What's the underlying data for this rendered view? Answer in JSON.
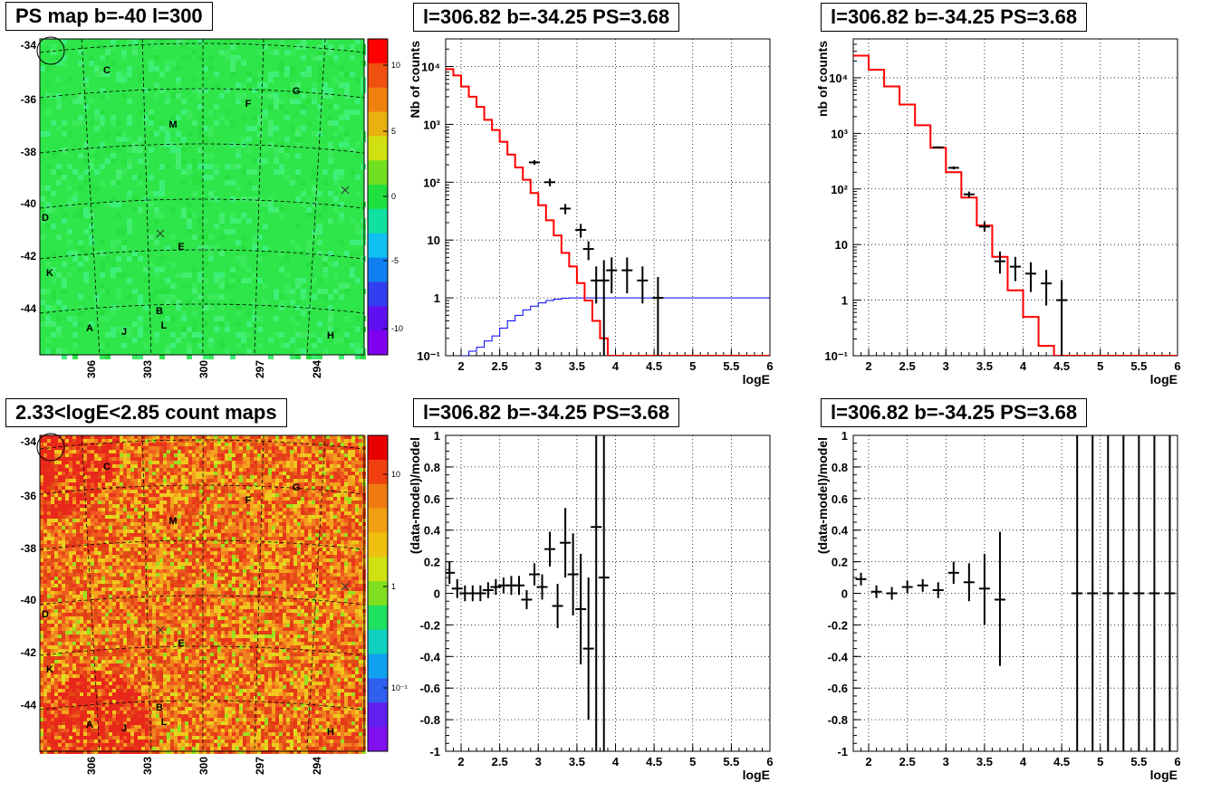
{
  "panels": {
    "ps_map": {
      "title": "PS map b=-40 l=300",
      "y_ticks": [
        "-34",
        "-36",
        "-38",
        "-40",
        "-42",
        "-44"
      ],
      "x_ticks": [
        "306",
        "303",
        "300",
        "297",
        "294"
      ],
      "colorbar_ticks": [
        "10",
        "5",
        "0",
        "-5",
        "-10"
      ],
      "colors": {
        "background": "#2ee64a",
        "patch": "#3cf07a"
      }
    },
    "count_map": {
      "title": "2.33<logE<2.85 count maps",
      "y_ticks": [
        "-34",
        "-36",
        "-38",
        "-40",
        "-42",
        "-44"
      ],
      "x_ticks": [
        "306",
        "303",
        "300",
        "297",
        "294"
      ],
      "colorbar_ticks": [
        "10",
        "1",
        "10⁻¹"
      ],
      "colors": {
        "background": "#f0701e"
      }
    },
    "sources": [
      {
        "label": "C"
      },
      {
        "label": "G"
      },
      {
        "label": "F"
      },
      {
        "label": "M"
      },
      {
        "label": "D"
      },
      {
        "label": "E"
      },
      {
        "label": "K"
      },
      {
        "label": "B"
      },
      {
        "label": "A"
      },
      {
        "label": "J"
      },
      {
        "label": "L"
      },
      {
        "label": "H"
      }
    ],
    "spectrum_left": {
      "title": "l=306.82 b=-34.25 PS=3.68"
    },
    "spectrum_right": {
      "title": "l=306.82 b=-34.25 PS=3.68"
    },
    "residual_left": {
      "title": "l=306.82 b=-34.25 PS=3.68"
    },
    "residual_right": {
      "title": "l=306.82 b=-34.25 PS=3.68"
    }
  },
  "chart_data": [
    {
      "type": "line",
      "title": "l=306.82 b=-34.25 PS=3.68",
      "xlabel": "logE",
      "ylabel": "Nb of counts",
      "xlim": [
        1.8,
        6
      ],
      "ylim": [
        0.1,
        30000
      ],
      "log_y": true,
      "grid": true,
      "x_ticks": [
        "2",
        "2.5",
        "3",
        "3.5",
        "4",
        "4.5",
        "5",
        "5.5",
        "6"
      ],
      "y_ticks": [
        "10⁻¹",
        "1",
        "10",
        "10²",
        "10³",
        "10⁴"
      ],
      "colors": {
        "model": "#ff0000",
        "data": "#000000",
        "exposure": "#0000ff"
      },
      "model_edges": [
        1.8,
        1.9,
        2.0,
        2.1,
        2.2,
        2.3,
        2.4,
        2.5,
        2.6,
        2.7,
        2.8,
        2.9,
        3.0,
        3.1,
        3.2,
        3.3,
        3.4,
        3.5,
        3.6,
        3.7,
        3.8,
        3.9,
        4.0,
        6.0
      ],
      "model_values": [
        9000,
        7000,
        4500,
        3000,
        2000,
        1200,
        800,
        500,
        300,
        180,
        110,
        65,
        40,
        22,
        12,
        6,
        3.5,
        1.8,
        0.9,
        0.4,
        0.2,
        0.1,
        0.1
      ],
      "data_points": [
        {
          "x": 2.95,
          "y": 220,
          "ylo": 200,
          "yhi": 240
        },
        {
          "x": 3.15,
          "y": 100,
          "ylo": 85,
          "yhi": 115
        },
        {
          "x": 3.35,
          "y": 35,
          "ylo": 28,
          "yhi": 42
        },
        {
          "x": 3.55,
          "y": 15,
          "ylo": 11,
          "yhi": 19
        },
        {
          "x": 3.65,
          "y": 7,
          "ylo": 4.5,
          "yhi": 9.5
        },
        {
          "x": 3.75,
          "y": 2,
          "ylo": 0.8,
          "yhi": 3.5
        },
        {
          "x": 3.85,
          "y": 2,
          "ylo": 0.1,
          "yhi": 4.5
        },
        {
          "x": 3.95,
          "y": 3,
          "ylo": 1.2,
          "yhi": 5
        },
        {
          "x": 4.15,
          "y": 3,
          "ylo": 1.2,
          "yhi": 5
        },
        {
          "x": 4.35,
          "y": 2,
          "ylo": 0.8,
          "yhi": 3.5
        },
        {
          "x": 4.55,
          "y": 1,
          "ylo": 0.1,
          "yhi": 2.3
        }
      ],
      "exposure_x": [
        2.0,
        2.1,
        2.2,
        2.3,
        2.4,
        2.5,
        2.6,
        2.7,
        2.8,
        2.9,
        3.0,
        3.1,
        3.2,
        3.3,
        3.4,
        3.6,
        6.0
      ],
      "exposure_y": [
        0.1,
        0.12,
        0.14,
        0.18,
        0.22,
        0.3,
        0.4,
        0.5,
        0.62,
        0.72,
        0.82,
        0.9,
        0.95,
        0.98,
        1.0,
        1.0,
        1.0
      ]
    },
    {
      "type": "line",
      "title": "l=306.82 b=-34.25 PS=3.68",
      "xlabel": "logE",
      "ylabel": "nb of counts",
      "xlim": [
        1.8,
        6
      ],
      "ylim": [
        0.1,
        50000
      ],
      "log_y": true,
      "grid": true,
      "x_ticks": [
        "2",
        "2.5",
        "3",
        "3.5",
        "4",
        "4.5",
        "5",
        "5.5",
        "6"
      ],
      "y_ticks": [
        "10⁻¹",
        "1",
        "10",
        "10²",
        "10³",
        "10⁴"
      ],
      "colors": {
        "model": "#ff0000",
        "data": "#000000"
      },
      "model_edges": [
        1.8,
        2.0,
        2.2,
        2.4,
        2.6,
        2.8,
        3.0,
        3.2,
        3.4,
        3.6,
        3.8,
        4.0,
        4.2,
        4.4,
        6.0
      ],
      "model_values": [
        25000,
        14000,
        7000,
        3300,
        1400,
        550,
        200,
        70,
        22,
        6,
        1.5,
        0.5,
        0.15,
        0.1
      ],
      "data_points": [
        {
          "x": 2.9,
          "y": 560,
          "ylo": 540,
          "yhi": 580
        },
        {
          "x": 3.1,
          "y": 240,
          "ylo": 225,
          "yhi": 255
        },
        {
          "x": 3.3,
          "y": 80,
          "ylo": 70,
          "yhi": 90
        },
        {
          "x": 3.5,
          "y": 21,
          "ylo": 17,
          "yhi": 26
        },
        {
          "x": 3.7,
          "y": 5,
          "ylo": 3,
          "yhi": 7.5
        },
        {
          "x": 3.9,
          "y": 4,
          "ylo": 2.2,
          "yhi": 6
        },
        {
          "x": 4.1,
          "y": 3,
          "ylo": 1.4,
          "yhi": 4.8
        },
        {
          "x": 4.3,
          "y": 2,
          "ylo": 0.8,
          "yhi": 3.5
        },
        {
          "x": 4.5,
          "y": 1,
          "ylo": 0.1,
          "yhi": 2.3
        }
      ]
    },
    {
      "type": "scatter",
      "title": "l=306.82 b=-34.25 PS=3.68",
      "xlabel": "logE",
      "ylabel": "(data-model)/model",
      "xlim": [
        1.8,
        6
      ],
      "ylim": [
        -1,
        1
      ],
      "grid": true,
      "x_ticks": [
        "2",
        "2.5",
        "3",
        "3.5",
        "4",
        "4.5",
        "5",
        "5.5",
        "6"
      ],
      "y_ticks": [
        "-1",
        "-0.8",
        "-0.6",
        "-0.4",
        "-0.2",
        "0",
        "0.2",
        "0.4",
        "0.6",
        "0.8",
        "1"
      ],
      "points": [
        {
          "x": 1.85,
          "y": 0.13,
          "ylo": 0.06,
          "yhi": 0.2
        },
        {
          "x": 1.95,
          "y": 0.03,
          "ylo": -0.03,
          "yhi": 0.09
        },
        {
          "x": 2.05,
          "y": 0.0,
          "ylo": -0.05,
          "yhi": 0.05
        },
        {
          "x": 2.15,
          "y": 0.0,
          "ylo": -0.05,
          "yhi": 0.05
        },
        {
          "x": 2.25,
          "y": 0.0,
          "ylo": -0.05,
          "yhi": 0.05
        },
        {
          "x": 2.35,
          "y": 0.02,
          "ylo": -0.03,
          "yhi": 0.07
        },
        {
          "x": 2.45,
          "y": 0.04,
          "ylo": -0.01,
          "yhi": 0.09
        },
        {
          "x": 2.55,
          "y": 0.05,
          "ylo": 0.0,
          "yhi": 0.1
        },
        {
          "x": 2.65,
          "y": 0.05,
          "ylo": -0.01,
          "yhi": 0.11
        },
        {
          "x": 2.75,
          "y": 0.05,
          "ylo": -0.01,
          "yhi": 0.11
        },
        {
          "x": 2.85,
          "y": -0.04,
          "ylo": -0.1,
          "yhi": 0.02
        },
        {
          "x": 2.95,
          "y": 0.12,
          "ylo": 0.05,
          "yhi": 0.19
        },
        {
          "x": 3.05,
          "y": 0.04,
          "ylo": -0.04,
          "yhi": 0.12
        },
        {
          "x": 3.15,
          "y": 0.28,
          "ylo": 0.17,
          "yhi": 0.39
        },
        {
          "x": 3.25,
          "y": -0.08,
          "ylo": -0.22,
          "yhi": 0.06
        },
        {
          "x": 3.35,
          "y": 0.32,
          "ylo": 0.1,
          "yhi": 0.54
        },
        {
          "x": 3.45,
          "y": 0.12,
          "ylo": -0.14,
          "yhi": 0.38
        },
        {
          "x": 3.55,
          "y": -0.1,
          "ylo": -0.45,
          "yhi": 0.25
        },
        {
          "x": 3.65,
          "y": -0.35,
          "ylo": -0.8,
          "yhi": 0.1
        },
        {
          "x": 3.75,
          "y": 0.42,
          "ylo": -1.0,
          "yhi": 1.0
        },
        {
          "x": 3.85,
          "y": 0.1,
          "ylo": -1.0,
          "yhi": 1.0
        }
      ]
    },
    {
      "type": "scatter",
      "title": "l=306.82 b=-34.25 PS=3.68",
      "xlabel": "logE",
      "ylabel": "(data-model)/model",
      "xlim": [
        1.8,
        6
      ],
      "ylim": [
        -1,
        1
      ],
      "grid": true,
      "x_ticks": [
        "2",
        "2.5",
        "3",
        "3.5",
        "4",
        "4.5",
        "5",
        "5.5",
        "6"
      ],
      "y_ticks": [
        "-1",
        "-0.8",
        "-0.6",
        "-0.4",
        "-0.2",
        "0",
        "0.2",
        "0.4",
        "0.6",
        "0.8",
        "1"
      ],
      "points": [
        {
          "x": 1.9,
          "y": 0.09,
          "ylo": 0.05,
          "yhi": 0.13
        },
        {
          "x": 2.1,
          "y": 0.01,
          "ylo": -0.03,
          "yhi": 0.05
        },
        {
          "x": 2.3,
          "y": 0.0,
          "ylo": -0.04,
          "yhi": 0.04
        },
        {
          "x": 2.5,
          "y": 0.04,
          "ylo": 0.0,
          "yhi": 0.08
        },
        {
          "x": 2.7,
          "y": 0.05,
          "ylo": 0.01,
          "yhi": 0.09
        },
        {
          "x": 2.9,
          "y": 0.02,
          "ylo": -0.03,
          "yhi": 0.07
        },
        {
          "x": 3.1,
          "y": 0.13,
          "ylo": 0.06,
          "yhi": 0.2
        },
        {
          "x": 3.3,
          "y": 0.07,
          "ylo": -0.05,
          "yhi": 0.19
        },
        {
          "x": 3.5,
          "y": 0.03,
          "ylo": -0.2,
          "yhi": 0.25
        },
        {
          "x": 3.7,
          "y": -0.04,
          "ylo": -0.46,
          "yhi": 0.39
        },
        {
          "x": 4.7,
          "y": 0,
          "ylo": -1,
          "yhi": 1
        },
        {
          "x": 4.9,
          "y": 0,
          "ylo": -1,
          "yhi": 1
        },
        {
          "x": 5.1,
          "y": 0,
          "ylo": -1,
          "yhi": 1
        },
        {
          "x": 5.3,
          "y": 0,
          "ylo": -1,
          "yhi": 1
        },
        {
          "x": 5.5,
          "y": 0,
          "ylo": -1,
          "yhi": 1
        },
        {
          "x": 5.7,
          "y": 0,
          "ylo": -1,
          "yhi": 1
        },
        {
          "x": 5.9,
          "y": 0,
          "ylo": -1,
          "yhi": 1
        }
      ]
    }
  ]
}
